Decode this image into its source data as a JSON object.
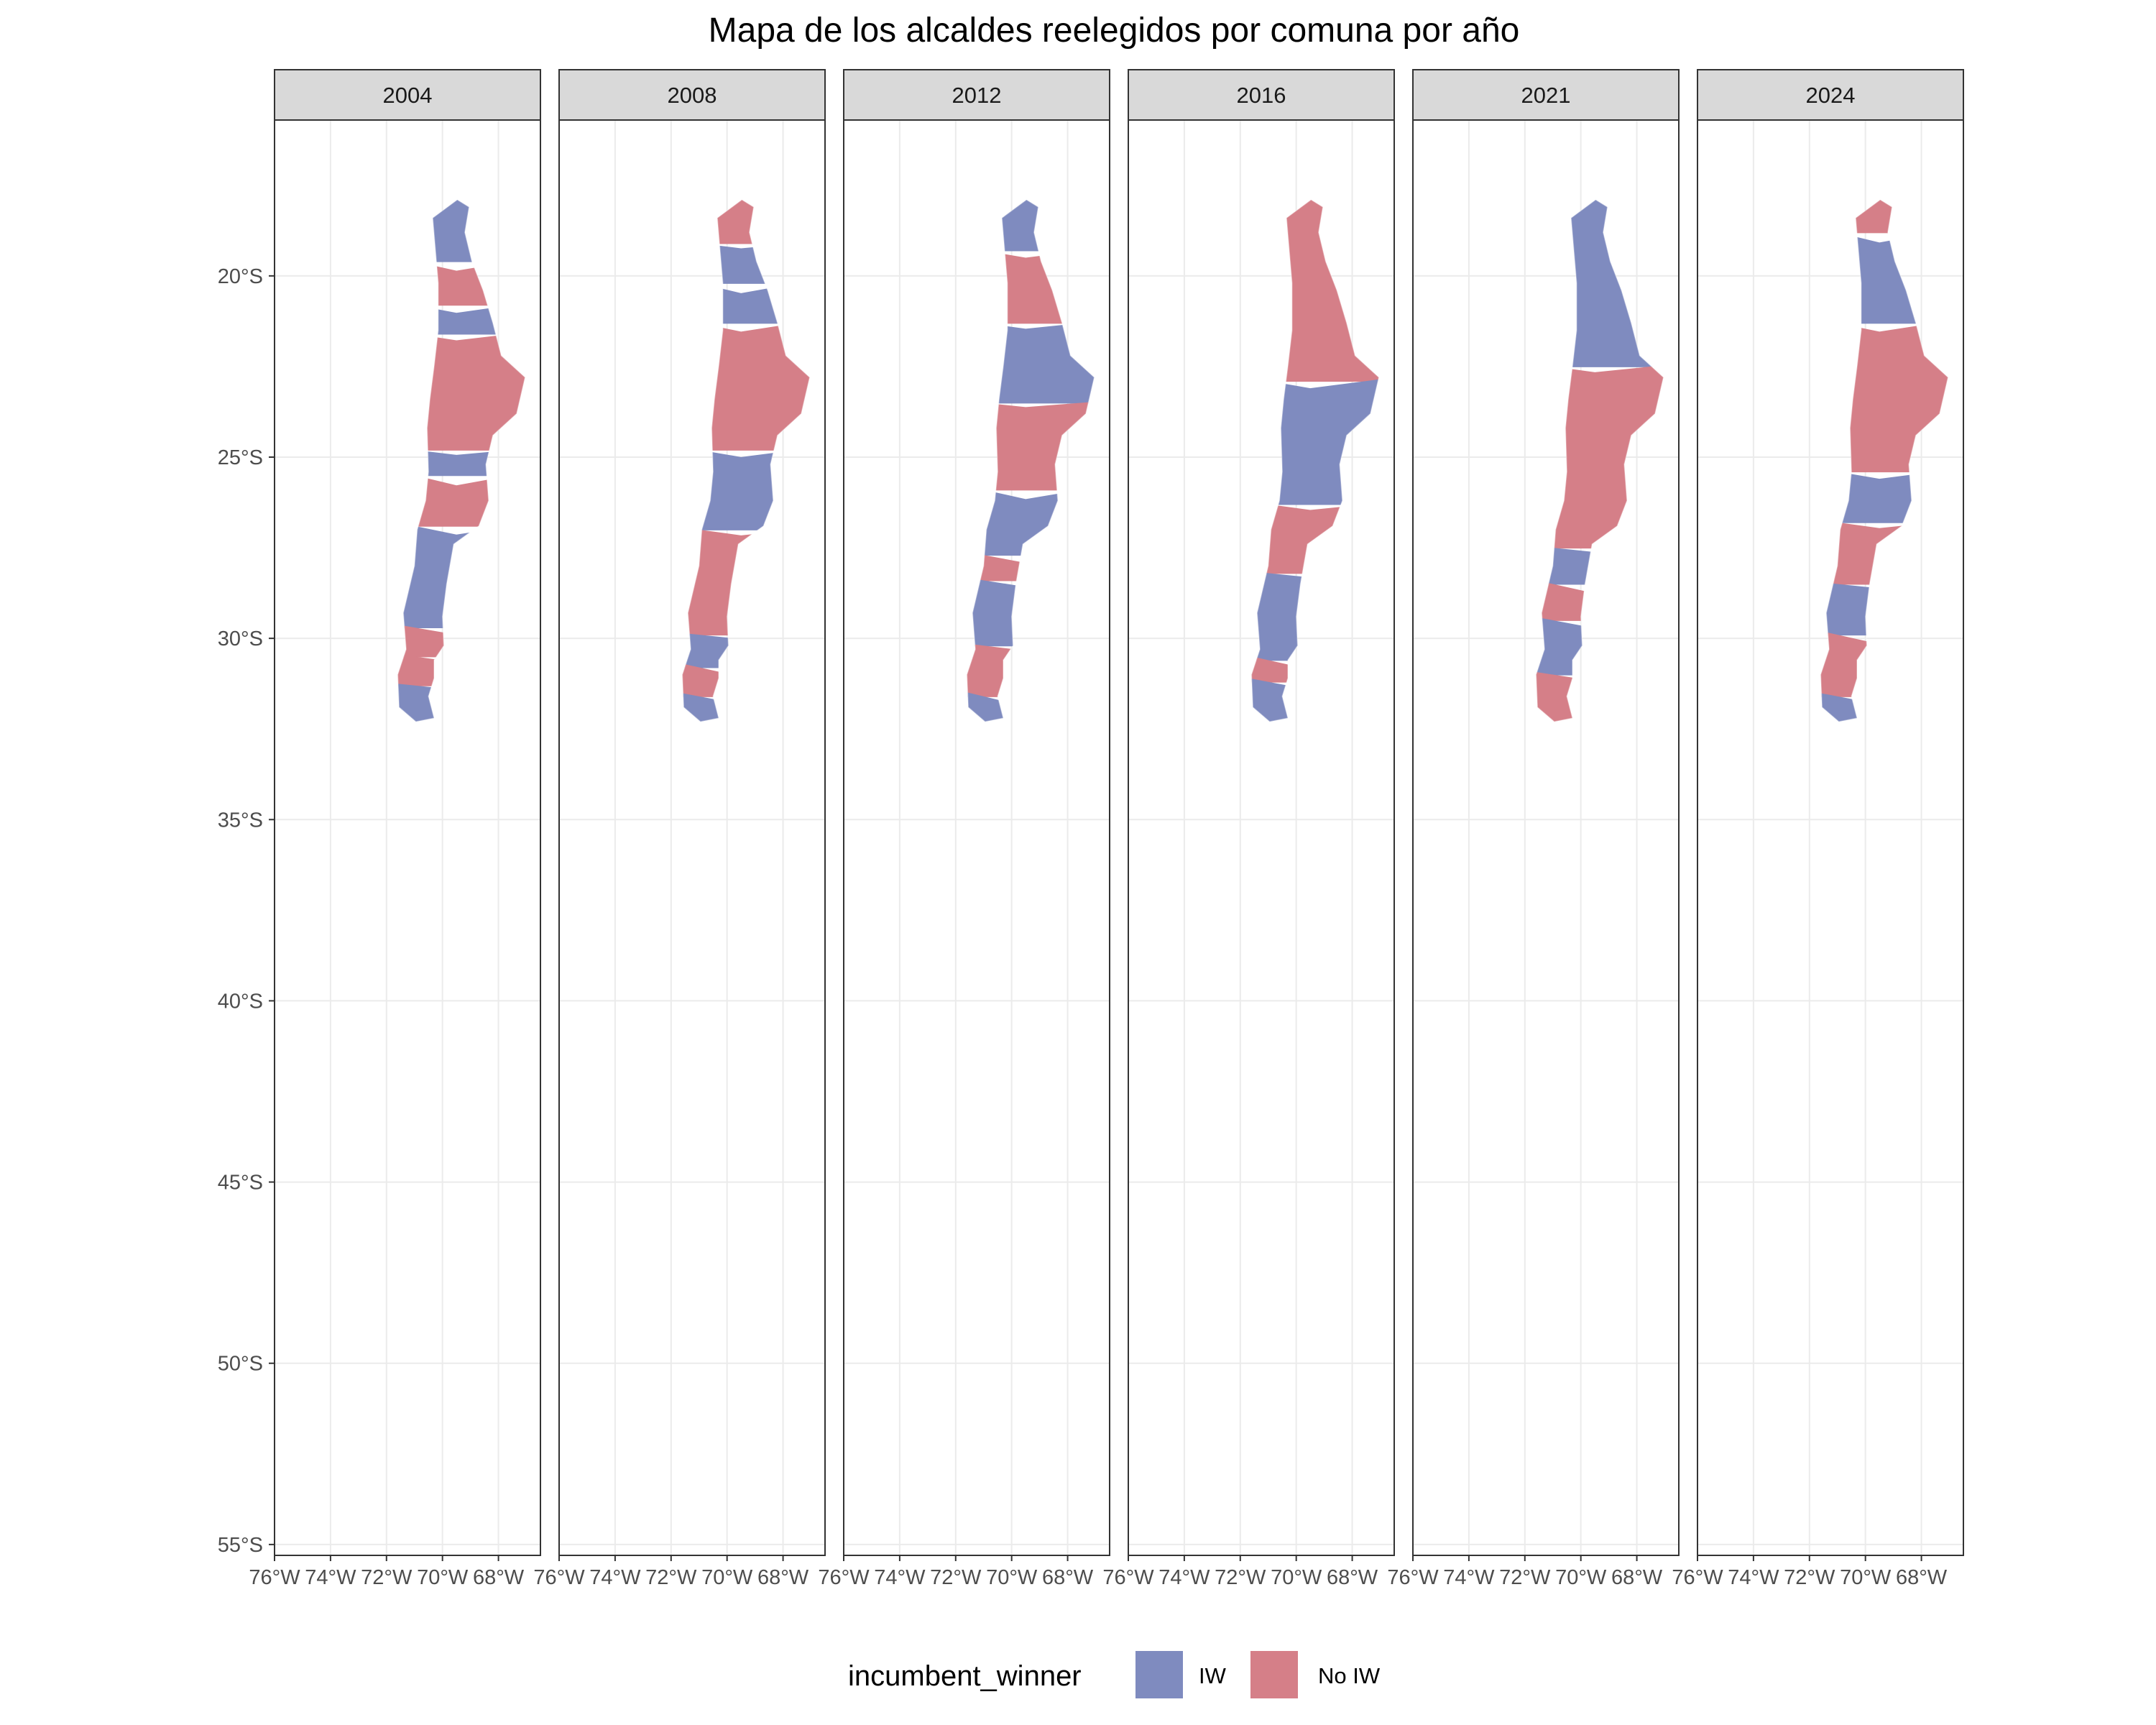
{
  "title": "Mapa de los alcaldes reelegidos por comuna por año",
  "chart_data": {
    "type": "choropleth-facet",
    "facet_variable": "year",
    "facets": [
      "2004",
      "2008",
      "2012",
      "2016",
      "2021",
      "2024"
    ],
    "x_axis": {
      "range": [
        -76,
        -66.5
      ],
      "ticks": [
        -76,
        -74,
        -72,
        -70,
        -68
      ],
      "tick_labels": [
        "76°W",
        "74°W",
        "72°W",
        "70°W",
        "68°W"
      ]
    },
    "y_axis": {
      "range": [
        -55.3,
        -15.7
      ],
      "ticks": [
        -20,
        -25,
        -30,
        -35,
        -40,
        -45,
        -50,
        -55
      ],
      "tick_labels": [
        "20°S",
        "25°S",
        "30°S",
        "35°S",
        "40°S",
        "45°S",
        "50°S",
        "55°S"
      ]
    },
    "grid": true,
    "legend": {
      "title": "incumbent_winner",
      "position": "bottom",
      "items": [
        {
          "label": "IW",
          "color": "#7f8bbf"
        },
        {
          "label": "No IW",
          "color": "#d57f88"
        }
      ]
    },
    "region_outline_ll": [
      [
        -69.47,
        -17.9
      ],
      [
        -69.05,
        -18.1
      ],
      [
        -69.2,
        -18.8
      ],
      [
        -68.95,
        -19.6
      ],
      [
        -68.55,
        -20.4
      ],
      [
        -68.2,
        -21.3
      ],
      [
        -67.9,
        -22.2
      ],
      [
        -67.05,
        -22.8
      ],
      [
        -67.35,
        -23.8
      ],
      [
        -68.2,
        -24.4
      ],
      [
        -68.45,
        -25.2
      ],
      [
        -68.35,
        -26.2
      ],
      [
        -68.7,
        -26.9
      ],
      [
        -69.6,
        -27.4
      ],
      [
        -69.85,
        -28.5
      ],
      [
        -70.0,
        -29.4
      ],
      [
        -69.95,
        -30.2
      ],
      [
        -70.3,
        -30.6
      ],
      [
        -70.3,
        -31.1
      ],
      [
        -70.5,
        -31.6
      ],
      [
        -70.3,
        -32.2
      ],
      [
        -70.95,
        -32.3
      ],
      [
        -71.55,
        -31.9
      ],
      [
        -71.6,
        -31.0
      ],
      [
        -71.3,
        -30.3
      ],
      [
        -71.4,
        -29.3
      ],
      [
        -71.0,
        -28.0
      ],
      [
        -70.9,
        -27.0
      ],
      [
        -70.6,
        -26.2
      ],
      [
        -70.5,
        -25.4
      ],
      [
        -70.55,
        -24.2
      ],
      [
        -70.45,
        -23.4
      ],
      [
        -70.3,
        -22.5
      ],
      [
        -70.15,
        -21.5
      ],
      [
        -70.15,
        -20.2
      ],
      [
        -70.35,
        -18.4
      ]
    ],
    "bands_by_year": {
      "2004": [
        {
          "lat_from": -17.9,
          "lat_to": -19.6,
          "status": "IW"
        },
        {
          "lat_from": -19.6,
          "lat_to": -20.8,
          "status": "No IW"
        },
        {
          "lat_from": -20.8,
          "lat_to": -21.6,
          "status": "IW"
        },
        {
          "lat_from": -21.6,
          "lat_to": -24.8,
          "status": "No IW"
        },
        {
          "lat_from": -24.8,
          "lat_to": -25.5,
          "status": "IW"
        },
        {
          "lat_from": -25.5,
          "lat_to": -26.9,
          "status": "No IW"
        },
        {
          "lat_from": -26.9,
          "lat_to": -29.7,
          "status": "IW"
        },
        {
          "lat_from": -29.7,
          "lat_to": -30.5,
          "status": "No IW"
        },
        {
          "lat_from": -30.5,
          "lat_to": -31.3,
          "status": "No IW"
        },
        {
          "lat_from": -31.3,
          "lat_to": -32.3,
          "status": "IW"
        }
      ],
      "2008": [
        {
          "lat_from": -17.9,
          "lat_to": -19.1,
          "status": "No IW"
        },
        {
          "lat_from": -19.1,
          "lat_to": -20.2,
          "status": "IW"
        },
        {
          "lat_from": -20.2,
          "lat_to": -21.3,
          "status": "IW"
        },
        {
          "lat_from": -21.3,
          "lat_to": -24.8,
          "status": "No IW"
        },
        {
          "lat_from": -24.8,
          "lat_to": -27.0,
          "status": "IW"
        },
        {
          "lat_from": -27.0,
          "lat_to": -29.9,
          "status": "No IW"
        },
        {
          "lat_from": -29.9,
          "lat_to": -30.8,
          "status": "IW"
        },
        {
          "lat_from": -30.8,
          "lat_to": -31.6,
          "status": "No IW"
        },
        {
          "lat_from": -31.6,
          "lat_to": -32.3,
          "status": "IW"
        }
      ],
      "2012": [
        {
          "lat_from": -17.9,
          "lat_to": -19.3,
          "status": "IW"
        },
        {
          "lat_from": -19.3,
          "lat_to": -21.3,
          "status": "No IW"
        },
        {
          "lat_from": -21.3,
          "lat_to": -23.5,
          "status": "IW"
        },
        {
          "lat_from": -23.5,
          "lat_to": -25.9,
          "status": "No IW"
        },
        {
          "lat_from": -25.9,
          "lat_to": -27.7,
          "status": "IW"
        },
        {
          "lat_from": -27.7,
          "lat_to": -28.4,
          "status": "No IW"
        },
        {
          "lat_from": -28.4,
          "lat_to": -30.2,
          "status": "IW"
        },
        {
          "lat_from": -30.2,
          "lat_to": -31.6,
          "status": "No IW"
        },
        {
          "lat_from": -31.6,
          "lat_to": -32.3,
          "status": "IW"
        }
      ],
      "2016": [
        {
          "lat_from": -17.9,
          "lat_to": -22.9,
          "status": "No IW"
        },
        {
          "lat_from": -22.9,
          "lat_to": -26.3,
          "status": "IW"
        },
        {
          "lat_from": -26.3,
          "lat_to": -28.2,
          "status": "No IW"
        },
        {
          "lat_from": -28.2,
          "lat_to": -30.6,
          "status": "IW"
        },
        {
          "lat_from": -30.6,
          "lat_to": -31.2,
          "status": "No IW"
        },
        {
          "lat_from": -31.2,
          "lat_to": -32.3,
          "status": "IW"
        }
      ],
      "2021": [
        {
          "lat_from": -17.9,
          "lat_to": -22.5,
          "status": "IW"
        },
        {
          "lat_from": -22.5,
          "lat_to": -27.5,
          "status": "No IW"
        },
        {
          "lat_from": -27.5,
          "lat_to": -28.5,
          "status": "IW"
        },
        {
          "lat_from": -28.5,
          "lat_to": -29.5,
          "status": "No IW"
        },
        {
          "lat_from": -29.5,
          "lat_to": -31.0,
          "status": "IW"
        },
        {
          "lat_from": -31.0,
          "lat_to": -32.3,
          "status": "No IW"
        }
      ],
      "2024": [
        {
          "lat_from": -17.9,
          "lat_to": -18.8,
          "status": "No IW"
        },
        {
          "lat_from": -18.8,
          "lat_to": -21.3,
          "status": "IW"
        },
        {
          "lat_from": -21.3,
          "lat_to": -25.4,
          "status": "No IW"
        },
        {
          "lat_from": -25.4,
          "lat_to": -26.8,
          "status": "IW"
        },
        {
          "lat_from": -26.8,
          "lat_to": -28.5,
          "status": "No IW"
        },
        {
          "lat_from": -28.5,
          "lat_to": -29.9,
          "status": "IW"
        },
        {
          "lat_from": -29.9,
          "lat_to": -31.6,
          "status": "No IW"
        },
        {
          "lat_from": -31.6,
          "lat_to": -32.3,
          "status": "IW"
        }
      ]
    }
  }
}
